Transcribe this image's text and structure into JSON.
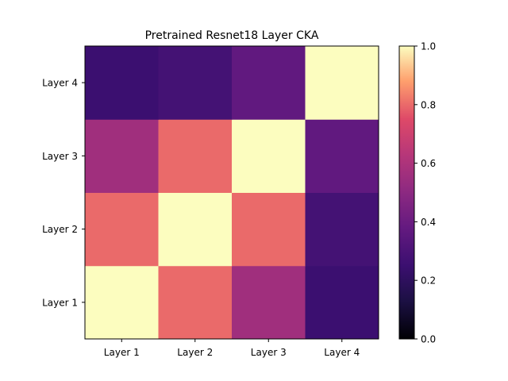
{
  "chart_data": {
    "type": "heatmap",
    "title": "Pretrained Resnet18 Layer CKA",
    "x_categories": [
      "Layer 1",
      "Layer 2",
      "Layer 3",
      "Layer 4"
    ],
    "y_categories": [
      "Layer 1",
      "Layer 2",
      "Layer 3",
      "Layer 4"
    ],
    "values": [
      [
        1.0,
        0.8,
        0.56,
        0.25
      ],
      [
        0.8,
        1.0,
        0.8,
        0.28
      ],
      [
        0.56,
        0.8,
        1.0,
        0.37
      ],
      [
        0.25,
        0.28,
        0.37,
        1.0
      ]
    ],
    "colormap": "magma",
    "vmin": 0.0,
    "vmax": 1.0,
    "colorbar_ticks": [
      "0.0",
      "0.2",
      "0.4",
      "0.6",
      "0.8",
      "1.0"
    ],
    "legend": "colorbar-right"
  }
}
